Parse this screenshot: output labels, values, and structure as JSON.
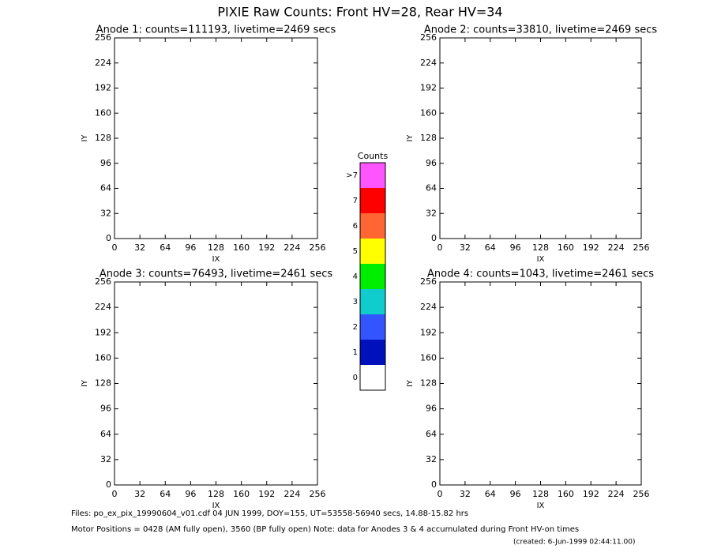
{
  "title": "PIXIE Raw Counts:  Front HV=28, Rear HV=34",
  "chart_data": [
    {
      "type": "image",
      "title": "Anode 1: counts=111193, livetime=2469 secs",
      "xlabel": "IX",
      "ylabel": "IY",
      "xlim": [
        0,
        256
      ],
      "ylim": [
        0,
        256
      ],
      "xticks": [
        0,
        32,
        64,
        96,
        128,
        160,
        192,
        224,
        256
      ],
      "yticks": [
        0,
        32,
        64,
        96,
        128,
        160,
        192,
        224,
        256
      ]
    },
    {
      "type": "image",
      "title": "Anode 2: counts=33810, livetime=2469 secs",
      "xlabel": "IX",
      "ylabel": "IY",
      "xlim": [
        0,
        256
      ],
      "ylim": [
        0,
        256
      ],
      "xticks": [
        0,
        32,
        64,
        96,
        128,
        160,
        192,
        224,
        256
      ],
      "yticks": [
        0,
        32,
        64,
        96,
        128,
        160,
        192,
        224,
        256
      ]
    },
    {
      "type": "image",
      "title": "Anode 3: counts=76493, livetime=2461 secs",
      "xlabel": "IX",
      "ylabel": "IY",
      "xlim": [
        0,
        256
      ],
      "ylim": [
        0,
        256
      ],
      "xticks": [
        0,
        32,
        64,
        96,
        128,
        160,
        192,
        224,
        256
      ],
      "yticks": [
        0,
        32,
        64,
        96,
        128,
        160,
        192,
        224,
        256
      ]
    },
    {
      "type": "image",
      "title": "Anode 4: counts=1043, livetime=2461 secs",
      "xlabel": "IX",
      "ylabel": "IY",
      "xlim": [
        0,
        256
      ],
      "ylim": [
        0,
        256
      ],
      "xticks": [
        0,
        32,
        64,
        96,
        128,
        160,
        192,
        224,
        256
      ],
      "yticks": [
        0,
        32,
        64,
        96,
        128,
        160,
        192,
        224,
        256
      ]
    }
  ],
  "colorbar": {
    "title": "Counts",
    "levels": [
      "0",
      "1",
      "2",
      "3",
      "4",
      "5",
      "6",
      "7",
      ">7"
    ],
    "colors": [
      "#ffffff",
      "#0011bb",
      "#3355ff",
      "#11cccc",
      "#00ee00",
      "#ffff00",
      "#ff6633",
      "#ff0000",
      "#ff55ff"
    ]
  },
  "footer": [
    "Files: po_ex_pix_19990604_v01.cdf    04 JUN 1999, DOY=155, UT=53558-56940 secs, 14.88-15.82 hrs",
    "Motor Positions = 0428 (AM fully open), 3560 (BP fully open)    Note: data for Anodes 3 & 4 accumulated during Front HV-on times",
    "(created:  6-Jun-1999 02:44:11.00)"
  ]
}
